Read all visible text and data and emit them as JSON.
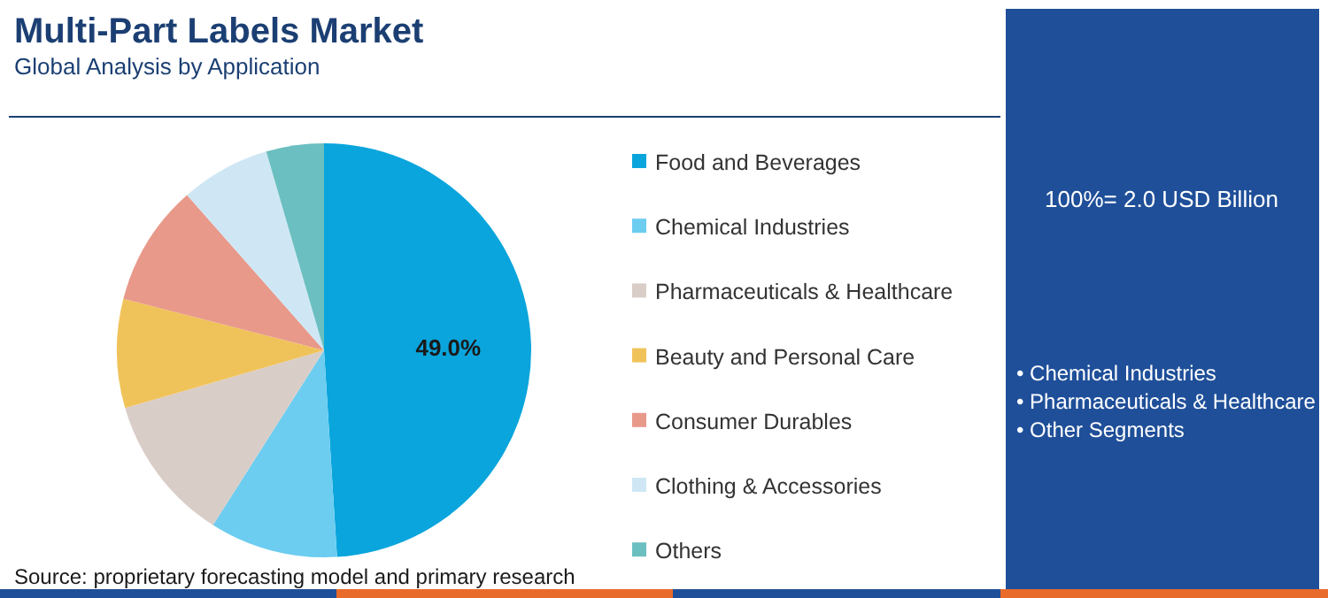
{
  "chart_data": {
    "type": "pie",
    "title": "Multi-Part Labels Market",
    "subtitle": "Global Analysis by Application",
    "categories": [
      "Food and Beverages",
      "Chemical Industries",
      "Pharmaceuticals & Healthcare",
      "Beauty and Personal Care",
      "Consumer Durables",
      "Clothing & Accessories",
      "Others"
    ],
    "values": [
      49,
      10,
      11.5,
      8.5,
      9.5,
      7,
      4.5
    ],
    "colors": [
      "#0aa5dc",
      "#6ccdf0",
      "#d9cdc8",
      "#f0c35a",
      "#e8998a",
      "#cfe7f5",
      "#6bbfc0"
    ],
    "value_labels": [
      "49.0%",
      null,
      null,
      null,
      null,
      null,
      null
    ],
    "legend": "right",
    "annotations": [
      "100%= 2.0 USD Billion",
      "• Chemical Industries",
      "• Pharmaceuticals & Healthcare",
      "• Other Segments",
      "Source: proprietary forecasting model and primary research"
    ]
  }
}
